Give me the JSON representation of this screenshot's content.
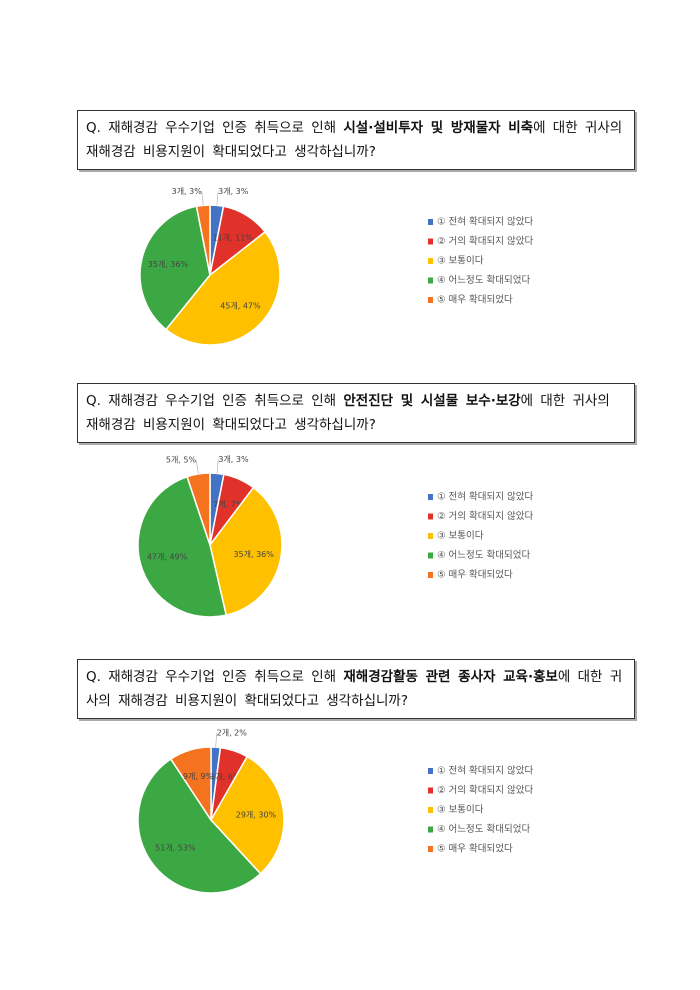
{
  "chart_data": [
    {
      "type": "pie",
      "question": [
        "Q. 재해경감 우수기업 인증 취득으로 인해 ",
        "시설·설비투자 및 방재물자 비축",
        "에 대한 귀사의 재해경감 비용지원이 확대되었다고 생각하십니까?"
      ],
      "categories": [
        "① 전혀 확대되지 않았다",
        "② 거의 확대되지 않았다",
        "③ 보통이다",
        "④ 어느정도 확대되었다",
        "⑤ 매우 확대되었다"
      ],
      "colors": [
        "#4472c4",
        "#e0312a",
        "#ffc000",
        "#3ca843",
        "#f4731f"
      ],
      "values": [
        3,
        11,
        45,
        35,
        3
      ],
      "value_labels": [
        "3개, 3%",
        "11개, 11%",
        "45개, 47%",
        "35개, 36%",
        "3개, 3%"
      ]
    },
    {
      "type": "pie",
      "question": [
        "Q. 재해경감 우수기업 인증 취득으로 인해 ",
        "안전진단 및 시설물 보수·보강",
        "에 대한 귀사의 재해경감 비용지원이 확대되었다고 생각하십니까?"
      ],
      "categories": [
        "① 전혀 확대되지 않았다",
        "② 거의 확대되지 않았다",
        "③ 보통이다",
        "④ 어느정도 확대되었다",
        "⑤ 매우 확대되었다"
      ],
      "colors": [
        "#4472c4",
        "#e0312a",
        "#ffc000",
        "#3ca843",
        "#f4731f"
      ],
      "values": [
        3,
        7,
        35,
        47,
        5
      ],
      "value_labels": [
        "3개, 3%",
        "7개, 7%",
        "35개, 36%",
        "47개, 49%",
        "5개, 5%"
      ]
    },
    {
      "type": "pie",
      "question": [
        "Q. 재해경감 우수기업 인증 취득으로 인해 ",
        "재해경감활동 관련 종사자 교육·홍보",
        "에 대한 귀사의 재해경감 비용지원이 확대되었다고 생각하십니까?"
      ],
      "categories": [
        "① 전혀 확대되지 않았다",
        "② 거의 확대되지 않았다",
        "③ 보통이다",
        "④ 어느정도 확대되었다",
        "⑤ 매우 확대되었다"
      ],
      "colors": [
        "#4472c4",
        "#e0312a",
        "#ffc000",
        "#3ca843",
        "#f4731f"
      ],
      "values": [
        2,
        6,
        29,
        51,
        9
      ],
      "value_labels": [
        "2개, 2%",
        "6개, 6%",
        "29개, 30%",
        "51개, 53%",
        "9개, 9%"
      ]
    }
  ]
}
